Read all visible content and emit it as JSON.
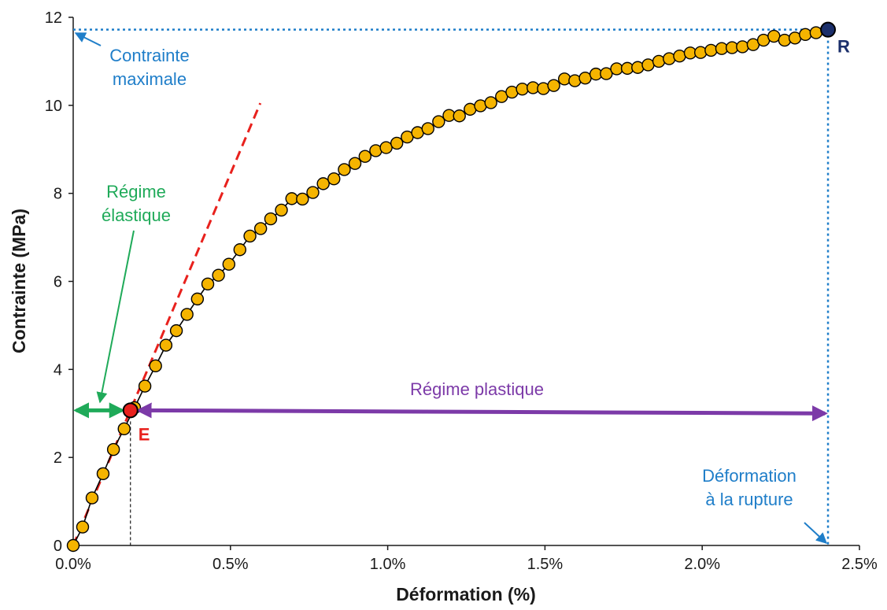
{
  "chart_data": {
    "type": "scatter",
    "title": "",
    "xlabel": "Déformation (%)",
    "ylabel": "Contrainte (MPa)",
    "xlim": [
      0,
      2.5
    ],
    "ylim": [
      0,
      12
    ],
    "x_ticks": [
      0,
      0.5,
      1.0,
      1.5,
      2.0,
      2.5
    ],
    "x_tick_labels": [
      "0.0%",
      "0.5%",
      "1.0%",
      "1.5%",
      "2.0%",
      "2.5%"
    ],
    "y_ticks": [
      0,
      2,
      4,
      6,
      8,
      10,
      12
    ],
    "y_tick_labels": [
      "0",
      "2",
      "4",
      "6",
      "8",
      "10",
      "12"
    ],
    "grid": false,
    "series": [
      {
        "marker_color": "#f5b400",
        "line_color": "#000000",
        "x": [
          0,
          0.03,
          0.06,
          0.095,
          0.128,
          0.162,
          0.195,
          0.228,
          0.262,
          0.295,
          0.328,
          0.362,
          0.395,
          0.428,
          0.462,
          0.495,
          0.53,
          0.562,
          0.596,
          0.628,
          0.662,
          0.695,
          0.729,
          0.762,
          0.795,
          0.829,
          0.862,
          0.896,
          0.928,
          0.962,
          0.995,
          1.029,
          1.062,
          1.095,
          1.128,
          1.162,
          1.195,
          1.228,
          1.262,
          1.295,
          1.328,
          1.362,
          1.395,
          1.428,
          1.462,
          1.495,
          1.528,
          1.562,
          1.595,
          1.628,
          1.662,
          1.695,
          1.728,
          1.762,
          1.795,
          1.828,
          1.862,
          1.895,
          1.928,
          1.962,
          1.995,
          2.028,
          2.062,
          2.095,
          2.128,
          2.162,
          2.195,
          2.228,
          2.262,
          2.295,
          2.328,
          2.362,
          2.4
        ],
        "y": [
          0,
          0.42,
          1.08,
          1.63,
          2.18,
          2.65,
          3.13,
          3.62,
          4.08,
          4.55,
          4.88,
          5.25,
          5.6,
          5.94,
          6.14,
          6.39,
          6.72,
          7.03,
          7.2,
          7.42,
          7.62,
          7.88,
          7.87,
          8.02,
          8.22,
          8.33,
          8.54,
          8.68,
          8.84,
          8.97,
          9.04,
          9.14,
          9.28,
          9.38,
          9.47,
          9.63,
          9.77,
          9.76,
          9.91,
          9.99,
          10.06,
          10.2,
          10.3,
          10.37,
          10.4,
          10.38,
          10.45,
          10.6,
          10.56,
          10.62,
          10.71,
          10.72,
          10.83,
          10.84,
          10.86,
          10.92,
          11.0,
          11.06,
          11.12,
          11.19,
          11.2,
          11.25,
          11.29,
          11.31,
          11.33,
          11.38,
          11.48,
          11.57,
          11.48,
          11.53,
          11.61,
          11.65,
          11.72
        ]
      }
    ],
    "elastic_fit_line": {
      "color": "#e8211d",
      "x": [
        0,
        0.595
      ],
      "y": [
        0,
        10.05
      ]
    },
    "points": {
      "E": {
        "label": "E",
        "x": 0.182,
        "y": 3.07,
        "color": "#e8211d"
      },
      "R": {
        "label": "R",
        "x": 2.4,
        "y": 11.72,
        "color": "#1b2f6b"
      }
    },
    "annotations": {
      "contrainte_maximale": {
        "lines": [
          "Contrainte",
          "maximale"
        ],
        "color": "#1f7ec9"
      },
      "deformation_rupture": {
        "lines": [
          "Déformation",
          "à la rupture"
        ],
        "color": "#1f7ec9"
      },
      "regime_elastique": {
        "lines": [
          "Régime",
          "élastique"
        ],
        "color": "#1faa59"
      },
      "regime_plastique": {
        "text": "Régime plastique",
        "color": "#7c3aa8"
      }
    }
  }
}
